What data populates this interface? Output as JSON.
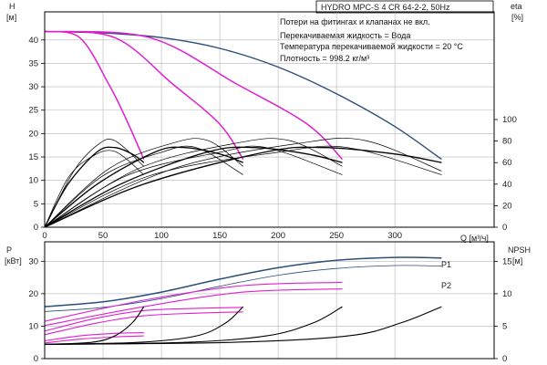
{
  "header": {
    "title": "HYDRO MPC-S 4 CR 64-2-2, 50Hz",
    "notes": [
      "Потери на фитингах и клапанах не вкл.",
      "Перекачиваемая жидкость = Вода",
      "Температура перекачиваемой жидкости = 20 °C",
      "Плотность = 998.2 кг/м³"
    ]
  },
  "colors": {
    "max_curve": "#2a4f7a",
    "setpoint_curve": "#e020d0",
    "eta_curve": "#000000",
    "power_p1": "#2a4f7a",
    "power_p2": "#2a4f7a",
    "power_pump": "#e020d0",
    "npsh": "#000000",
    "axis": "#000000"
  },
  "chart_data": [
    {
      "type": "line",
      "name": "head",
      "xlabel": "Q [м³/ч]",
      "ylabel_left": [
        "H",
        "[м]"
      ],
      "ylabel_right": [
        "eta",
        "[%]"
      ],
      "xlim": [
        0,
        385
      ],
      "ylim": [
        0,
        46
      ],
      "y2lim": [
        0,
        200
      ],
      "xticks": [
        0,
        50,
        100,
        150,
        200,
        250,
        300
      ],
      "yticks": [
        0,
        5,
        10,
        15,
        20,
        25,
        30,
        35,
        40
      ],
      "y2ticks": [
        0,
        20,
        40,
        60,
        80,
        100
      ],
      "series": [
        {
          "role": "max",
          "x": [
            0,
            50,
            100,
            150,
            200,
            250,
            300,
            340
          ],
          "y": [
            41.8,
            41.5,
            40.5,
            38.2,
            34.2,
            28.5,
            21.5,
            14.5
          ]
        },
        {
          "role": "setpoint",
          "x": [
            0,
            30,
            55,
            70,
            85
          ],
          "y": [
            41.8,
            40.5,
            30.5,
            23,
            14.5
          ]
        },
        {
          "role": "setpoint",
          "x": [
            0,
            60,
            110,
            150,
            170
          ],
          "y": [
            41.8,
            40.5,
            30.5,
            22,
            14.5
          ]
        },
        {
          "role": "setpoint",
          "x": [
            0,
            90,
            165,
            225,
            255
          ],
          "y": [
            41.8,
            40.5,
            30.5,
            22,
            14.5
          ]
        },
        {
          "role": "eta",
          "x": [
            0,
            20,
            45,
            60,
            75,
            85
          ],
          "y": [
            0,
            40,
            70,
            74,
            68,
            60
          ]
        },
        {
          "role": "eta",
          "x": [
            0,
            45,
            95,
            120,
            150,
            170
          ],
          "y": [
            0,
            40,
            70,
            74,
            68,
            60
          ]
        },
        {
          "role": "eta",
          "x": [
            0,
            65,
            140,
            180,
            225,
            255
          ],
          "y": [
            0,
            40,
            70,
            74,
            68,
            60
          ]
        },
        {
          "role": "eta",
          "x": [
            0,
            85,
            190,
            240,
            300,
            340
          ],
          "y": [
            0,
            40,
            70,
            74,
            68,
            60
          ]
        },
        {
          "role": "head_op",
          "x": [
            0,
            20,
            40,
            60,
            85
          ],
          "y": [
            0,
            10.5,
            15,
            16.2,
            11.2
          ]
        },
        {
          "role": "head_op",
          "x": [
            0,
            50,
            100,
            130,
            170
          ],
          "y": [
            0,
            11,
            16,
            17,
            11.2
          ]
        },
        {
          "role": "head_op",
          "x": [
            0,
            70,
            150,
            190,
            255
          ],
          "y": [
            0,
            11,
            16,
            17,
            11.2
          ]
        },
        {
          "role": "head_op",
          "x": [
            0,
            90,
            200,
            260,
            340
          ],
          "y": [
            0,
            11,
            16,
            17,
            11.2
          ]
        },
        {
          "role": "head_op",
          "x": [
            0,
            25,
            45,
            60,
            85
          ],
          "y": [
            0,
            12,
            17.5,
            18.5,
            13
          ]
        },
        {
          "role": "head_op",
          "x": [
            0,
            55,
            110,
            140,
            170
          ],
          "y": [
            0,
            12.5,
            18,
            18.5,
            13
          ]
        },
        {
          "role": "head_op",
          "x": [
            0,
            80,
            165,
            210,
            255
          ],
          "y": [
            0,
            12.5,
            18,
            18.5,
            13
          ]
        },
        {
          "role": "head_op",
          "x": [
            0,
            110,
            220,
            275,
            340
          ],
          "y": [
            0,
            12.5,
            18,
            18.5,
            12
          ]
        }
      ]
    },
    {
      "type": "line",
      "name": "power",
      "ylabel_left": [
        "P",
        "[кВт]"
      ],
      "ylabel_right": [
        "NPSH",
        "[м]"
      ],
      "xlim": [
        0,
        385
      ],
      "ylim": [
        0,
        36
      ],
      "y2lim": [
        0,
        18
      ],
      "yticks": [
        0,
        10,
        20,
        30
      ],
      "y2ticks": [
        0,
        5,
        10,
        15
      ],
      "legend": [
        "P1",
        "P2"
      ],
      "series": [
        {
          "role": "p1",
          "name": "P1",
          "x": [
            0,
            50,
            100,
            150,
            200,
            250,
            300,
            340
          ],
          "y": [
            16,
            17.5,
            20.5,
            24.5,
            28,
            30.3,
            31.2,
            31
          ]
        },
        {
          "role": "p2",
          "name": "P2",
          "x": [
            0,
            50,
            100,
            150,
            200,
            250,
            300,
            340
          ],
          "y": [
            14.5,
            15.8,
            18.5,
            22.3,
            25.7,
            27.8,
            28.7,
            28.5
          ]
        },
        {
          "role": "pump",
          "x": [
            0,
            85,
            170,
            255
          ],
          "y": [
            11.5,
            18,
            22.5,
            23.5
          ]
        },
        {
          "role": "pump",
          "x": [
            0,
            85,
            170,
            255
          ],
          "y": [
            10.2,
            16,
            20.5,
            21.5
          ]
        },
        {
          "role": "pump",
          "x": [
            0,
            45,
            85,
            130,
            170
          ],
          "y": [
            8.5,
            12.5,
            14.8,
            15.5,
            15.8
          ]
        },
        {
          "role": "pump",
          "x": [
            0,
            45,
            85,
            130,
            170
          ],
          "y": [
            7.4,
            11,
            13.2,
            14,
            14.4
          ]
        },
        {
          "role": "pump",
          "x": [
            0,
            30,
            60,
            85
          ],
          "y": [
            5.5,
            7,
            7.8,
            8
          ]
        },
        {
          "role": "pump",
          "x": [
            0,
            30,
            60,
            85
          ],
          "y": [
            4.8,
            6,
            6.7,
            7
          ]
        },
        {
          "role": "npsh",
          "x": [
            0,
            40,
            60,
            75,
            85
          ],
          "y": [
            2.2,
            2.5,
            3.5,
            5.5,
            8
          ]
        },
        {
          "role": "npsh",
          "x": [
            0,
            80,
            130,
            155,
            170
          ],
          "y": [
            2.2,
            2.5,
            3.5,
            5.5,
            8
          ]
        },
        {
          "role": "npsh",
          "x": [
            0,
            120,
            190,
            230,
            255
          ],
          "y": [
            2.2,
            2.5,
            3.5,
            5.5,
            8
          ]
        },
        {
          "role": "npsh",
          "x": [
            0,
            160,
            260,
            305,
            340
          ],
          "y": [
            2.2,
            2.5,
            3.5,
            5.5,
            8
          ]
        }
      ]
    }
  ]
}
